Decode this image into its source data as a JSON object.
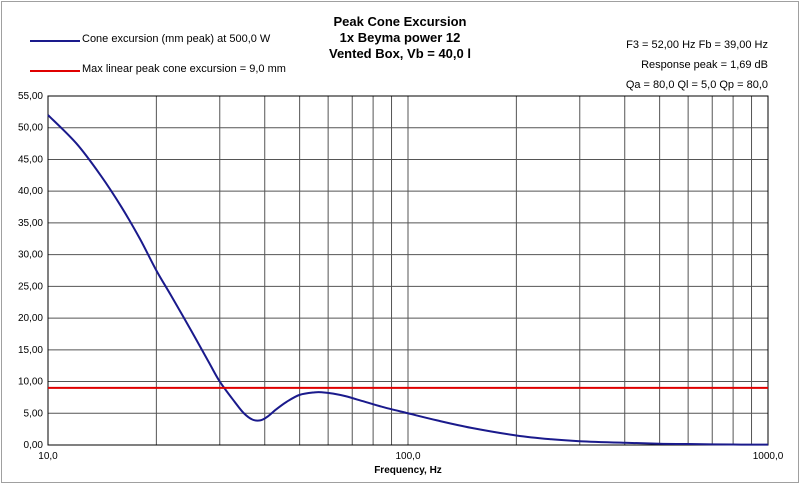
{
  "titles": [
    "Peak Cone Excursion",
    "1x Beyma power 12",
    "Vented Box, Vb = 40,0 l"
  ],
  "legend": [
    {
      "label": "Cone excursion (mm peak) at 500,0 W",
      "color": "#1a1a8c"
    },
    {
      "label": "Max linear peak cone excursion = 9,0 mm",
      "color": "#e00000"
    }
  ],
  "info": [
    "F3 = 52,00 Hz  Fb = 39,00 Hz",
    "Response peak = 1,69 dB",
    "Qa = 80,0  Ql = 5,0  Qp = 80,0"
  ],
  "chart_data": {
    "type": "line",
    "title": "Peak Cone Excursion",
    "xlabel": "Frequency, Hz",
    "ylabel": "",
    "x_scale": "log",
    "xlim": [
      10,
      1000
    ],
    "ylim": [
      0,
      55
    ],
    "x_tick_labels": [
      "10,0",
      "100,0",
      "1000,0"
    ],
    "y_ticks": [
      "0,00",
      "5,00",
      "10,00",
      "15,00",
      "20,00",
      "25,00",
      "30,00",
      "35,00",
      "40,00",
      "45,00",
      "50,00",
      "55,00"
    ],
    "grid": true,
    "series": [
      {
        "name": "Cone excursion (mm peak) at 500,0 W",
        "color": "#1a1a8c",
        "x": [
          10,
          12,
          14,
          16,
          18,
          20,
          22,
          25,
          28,
          30,
          33,
          35,
          37,
          39,
          41,
          43,
          46,
          50,
          55,
          58,
          62,
          67,
          75,
          85,
          100,
          120,
          150,
          200,
          250,
          300,
          400,
          500,
          600,
          800,
          1000
        ],
        "y": [
          52.0,
          47.5,
          42.5,
          37.5,
          32.5,
          27.5,
          23.5,
          18.0,
          13.0,
          10.0,
          6.8,
          5.0,
          4.0,
          3.9,
          4.6,
          5.6,
          6.8,
          7.9,
          8.3,
          8.3,
          8.1,
          7.7,
          6.9,
          6.0,
          5.0,
          3.9,
          2.7,
          1.5,
          0.9,
          0.6,
          0.35,
          0.2,
          0.15,
          0.07,
          0.05
        ]
      },
      {
        "name": "Max linear peak cone excursion = 9,0 mm",
        "color": "#e00000",
        "x": [
          10,
          1000
        ],
        "y": [
          9.0,
          9.0
        ]
      }
    ]
  }
}
